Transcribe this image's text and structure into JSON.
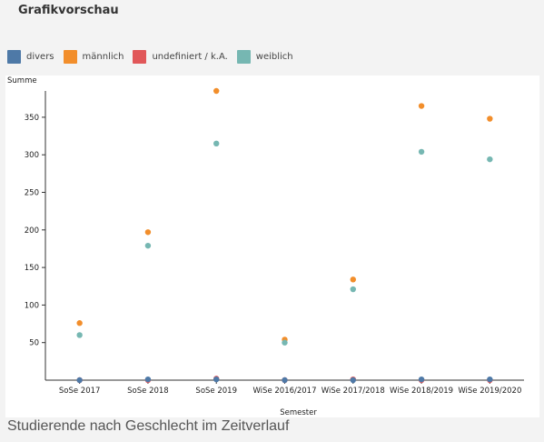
{
  "header": {
    "title": "Grafikvorschau"
  },
  "caption": "Studierende nach Geschlecht im Zeitverlauf",
  "chart_data": {
    "type": "scatter",
    "xlabel": "Semester",
    "ylabel": "Summe",
    "categories": [
      "SoSe 2017",
      "SoSe 2018",
      "SoSe 2019",
      "WiSe 2016/2017",
      "WiSe 2017/2018",
      "WiSe 2018/2019",
      "WiSe 2019/2020"
    ],
    "ylim": [
      0,
      385
    ],
    "yticks": [
      50,
      100,
      150,
      200,
      250,
      300,
      350
    ],
    "grid": false,
    "legend_position": "top-left",
    "series": [
      {
        "name": "divers",
        "color": "#4e79a7",
        "values": [
          0,
          1,
          1,
          0,
          0,
          1,
          1
        ]
      },
      {
        "name": "männlich",
        "color": "#f28e2b",
        "values": [
          76,
          197,
          385,
          54,
          134,
          365,
          348
        ]
      },
      {
        "name": "undefiniert / k.A.",
        "color": "#e15759",
        "values": [
          0,
          0,
          2,
          0,
          1,
          0,
          0
        ]
      },
      {
        "name": "weiblich",
        "color": "#76b7b2",
        "values": [
          60,
          179,
          315,
          50,
          121,
          304,
          294
        ]
      }
    ]
  }
}
